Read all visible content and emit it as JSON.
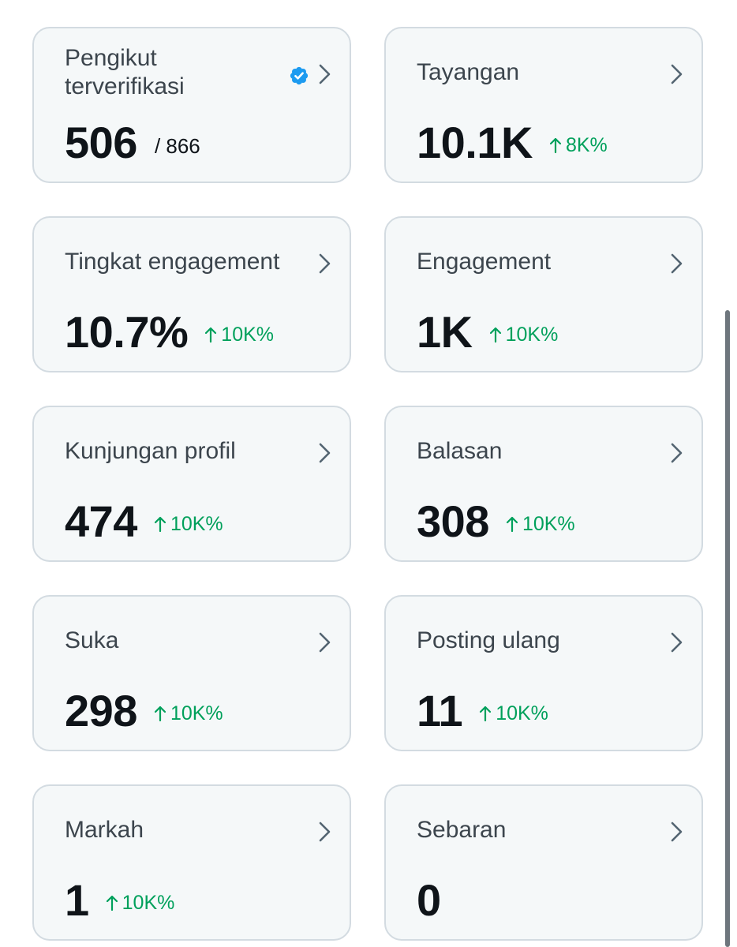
{
  "colors": {
    "card_background": "#f5f8f9",
    "card_border": "#d3dbe1",
    "label": "#3c454d",
    "value": "#0f1419",
    "positive_change": "#00a05b",
    "verified": "#1d9bf0",
    "chevron": "#536471"
  },
  "cards": [
    {
      "title": "Pengikut terverifikasi",
      "value": "506",
      "sub": "/ 866",
      "icon": "verified-badge-icon"
    },
    {
      "title": "Tayangan",
      "value": "10.1K",
      "change": "8K%"
    },
    {
      "title": "Tingkat engagement",
      "value": "10.7%",
      "change": "10K%"
    },
    {
      "title": "Engagement",
      "value": "1K",
      "change": "10K%"
    },
    {
      "title": "Kunjungan profil",
      "value": "474",
      "change": "10K%"
    },
    {
      "title": "Balasan",
      "value": "308",
      "change": "10K%"
    },
    {
      "title": "Suka",
      "value": "298",
      "change": "10K%"
    },
    {
      "title": "Posting ulang",
      "value": "11",
      "change": "10K%"
    },
    {
      "title": "Markah",
      "value": "1",
      "change": "10K%"
    },
    {
      "title": "Sebaran",
      "value": "0"
    }
  ]
}
